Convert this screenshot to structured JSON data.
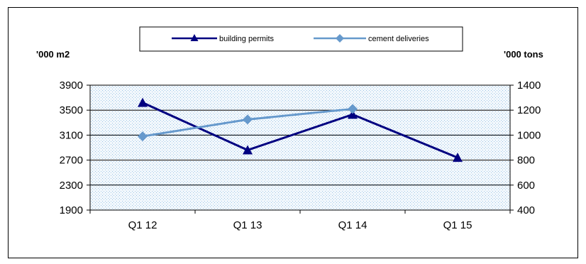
{
  "chart_data": {
    "type": "line",
    "categories": [
      "Q1 12",
      "Q1 13",
      "Q1 14",
      "Q1 15"
    ],
    "y_left": {
      "label": "'000 m2",
      "ticks": [
        "3900",
        "3500",
        "3100",
        "2700",
        "2300",
        "1900"
      ],
      "range": [
        1900,
        3900
      ]
    },
    "y_right": {
      "label": "'000 tons",
      "ticks": [
        "1400",
        "1200",
        "1000",
        "800",
        "600",
        "400"
      ],
      "range": [
        400,
        1400
      ]
    },
    "series": [
      {
        "name": "building permits",
        "axis": "left",
        "color": "#000080",
        "marker": "triangle",
        "values": [
          3620,
          2860,
          3430,
          2740
        ]
      },
      {
        "name": "cement deliveries",
        "axis": "right",
        "color": "#6699CC",
        "marker": "diamond",
        "values": [
          990,
          1125,
          1210,
          null
        ]
      }
    ],
    "legend_position": "top-center",
    "grid": true,
    "plot_background": "dotted light blue"
  }
}
